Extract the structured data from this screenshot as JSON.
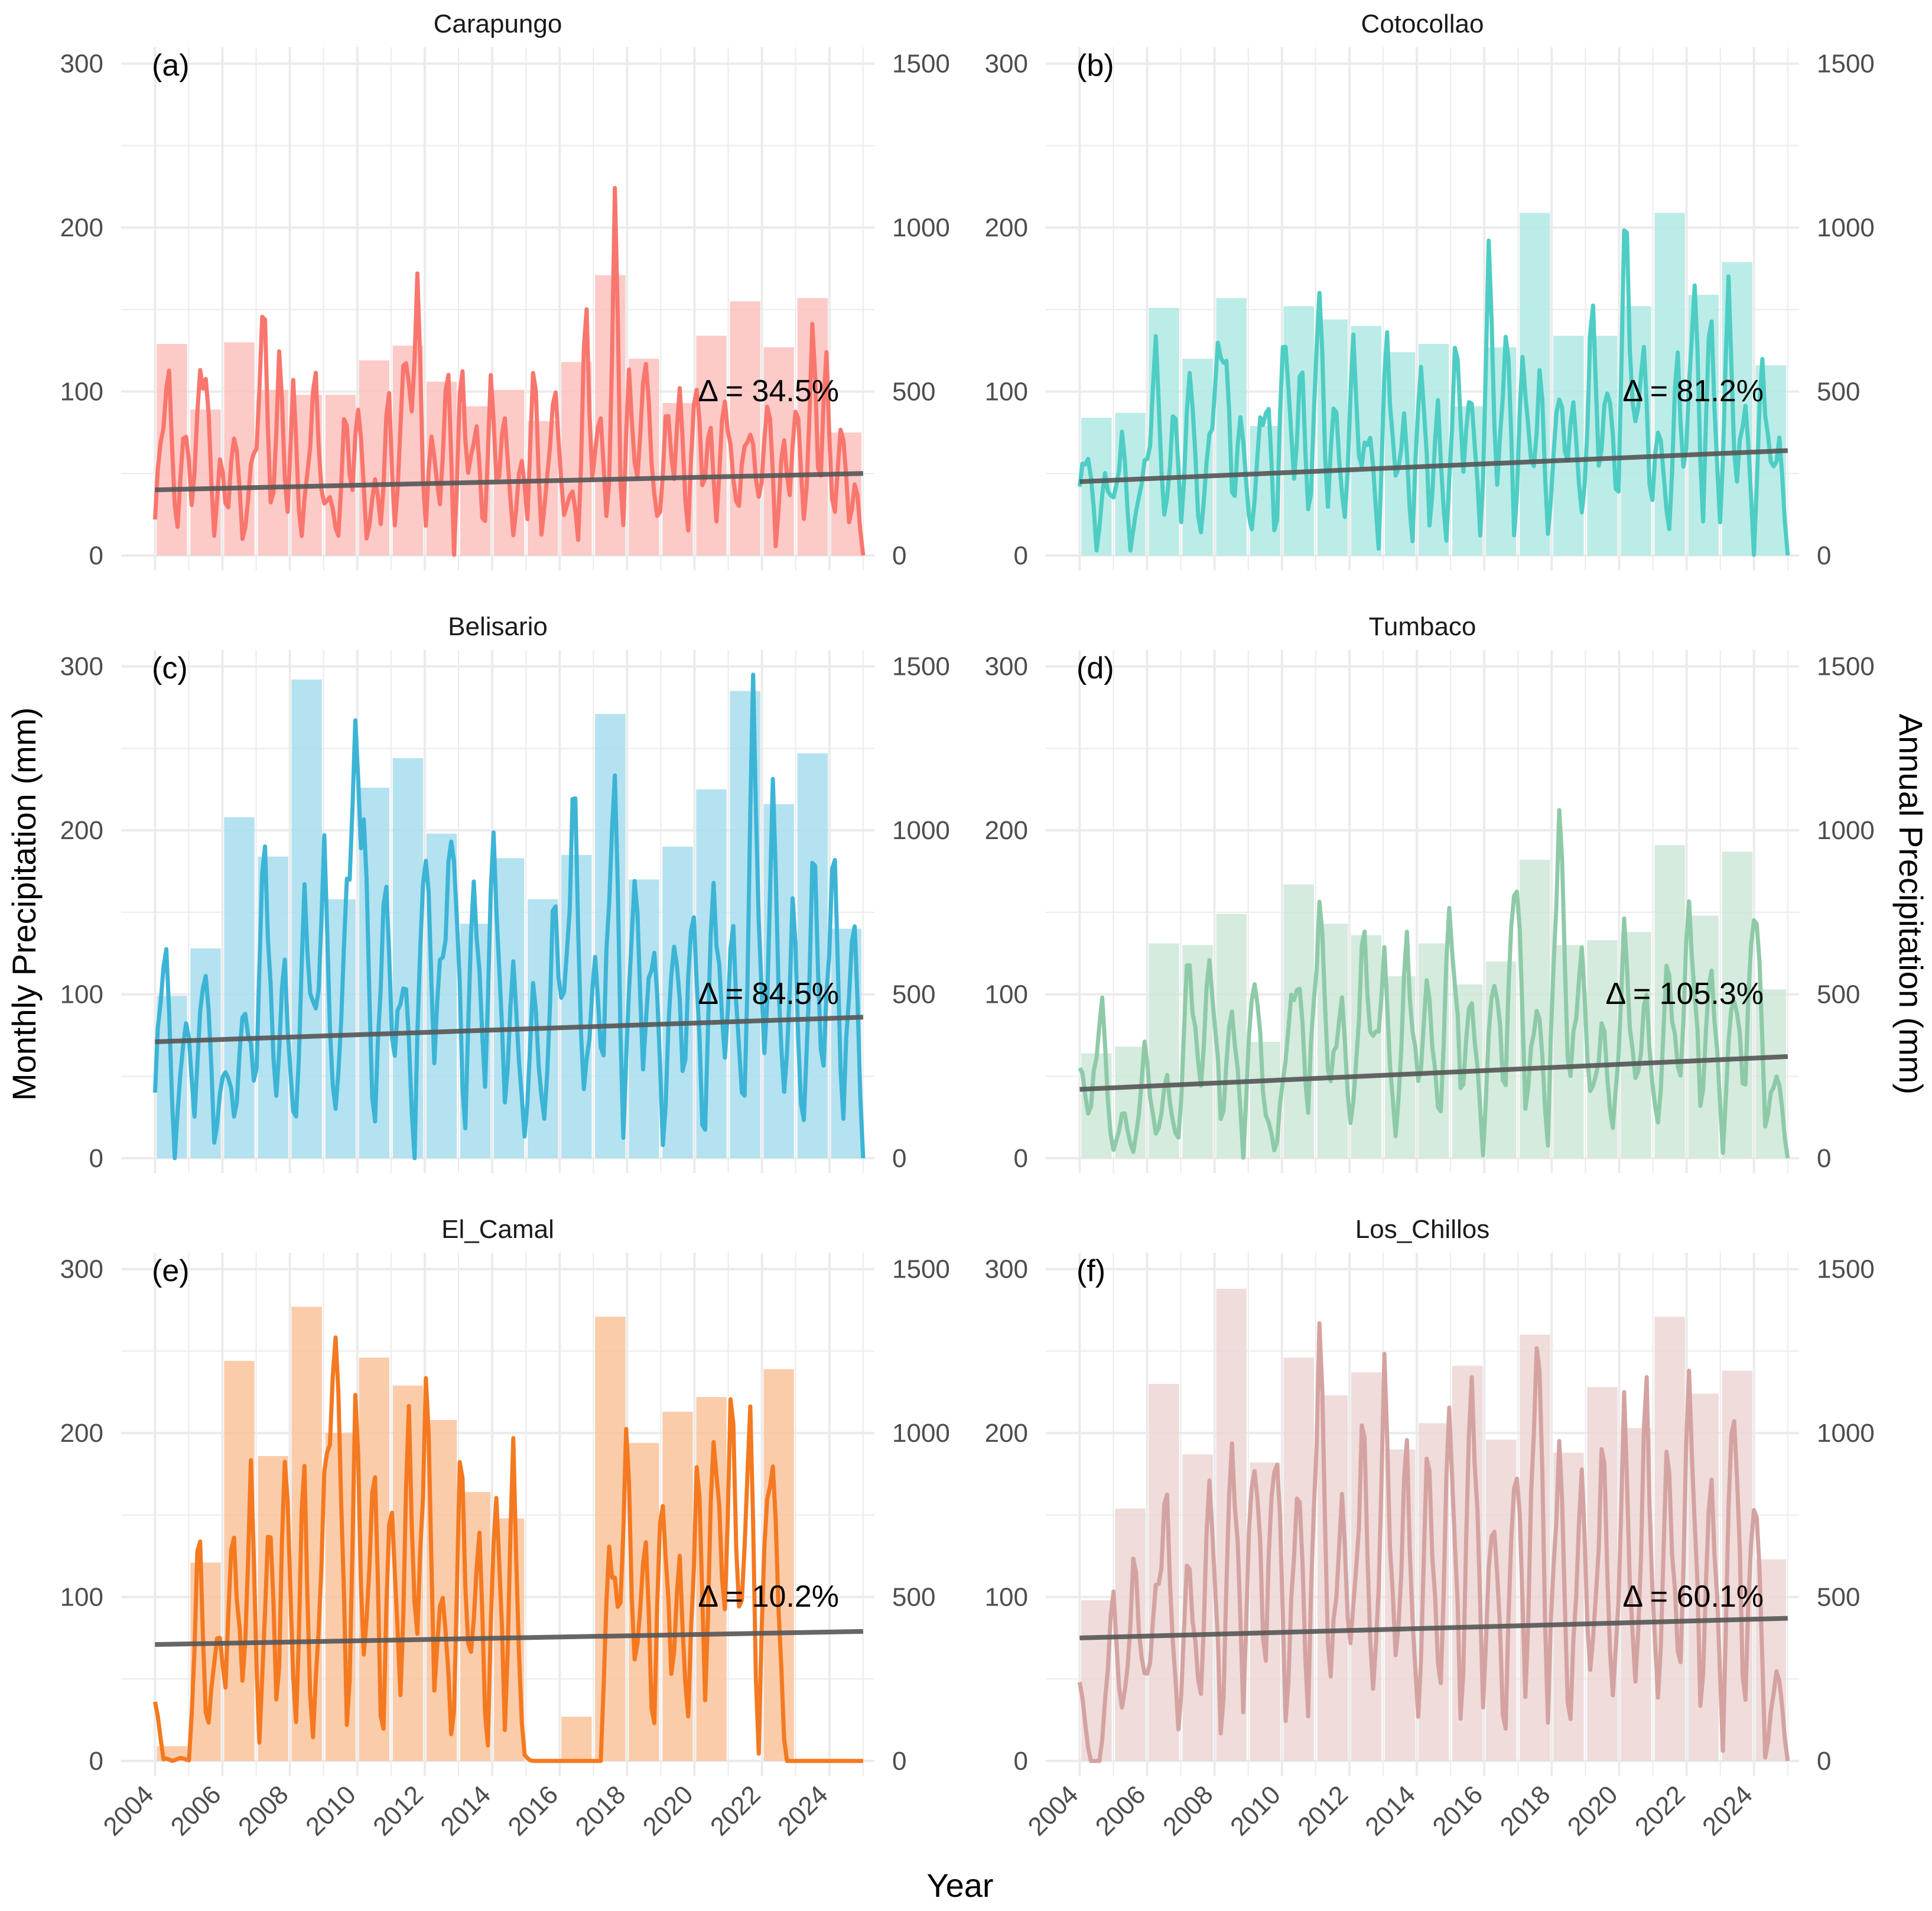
{
  "chart_data": {
    "type": "bar+line",
    "xlabel": "Year",
    "ylabel_left": "Monthly Precipitation (mm)",
    "ylabel_right": "Annual Precipitation (mm)",
    "x_range": [
      2004,
      2025
    ],
    "x_ticks": [
      "2004",
      "2006",
      "2008",
      "2010",
      "2012",
      "2014",
      "2016",
      "2018",
      "2020",
      "2022",
      "2024"
    ],
    "ylim_monthly": [
      0,
      310
    ],
    "ylim_annual": [
      0,
      1550
    ],
    "y_ticks_monthly": [
      "0",
      "100",
      "200",
      "300"
    ],
    "y_ticks_annual": [
      "0",
      "500",
      "1000",
      "1500"
    ],
    "trend_color": "#555555",
    "panels": [
      {
        "tag": "(a)",
        "station": "Carapungo",
        "color": "#F8766D",
        "delta_label": "Δ = 34.5%",
        "annual_years": [
          2004,
          2005,
          2006,
          2007,
          2008,
          2009,
          2010,
          2011,
          2012,
          2013,
          2014,
          2015,
          2016,
          2017,
          2018,
          2019,
          2020,
          2021,
          2022,
          2023,
          2024
        ],
        "annual_values": [
          645,
          445,
          650,
          505,
          490,
          490,
          595,
          640,
          530,
          455,
          505,
          410,
          590,
          855,
          600,
          465,
          670,
          775,
          635,
          785,
          375
        ],
        "trend": [
          40,
          50
        ],
        "monthly_anchors": [
          22,
          85,
          105,
          5,
          88,
          30,
          98,
          118,
          10,
          60,
          25,
          85,
          5,
          45,
          75,
          158,
          3,
          130,
          20,
          105,
          5,
          60,
          110,
          25,
          40,
          5,
          88,
          40,
          98,
          3,
          48,
          20,
          105,
          3,
          128,
          85,
          164,
          12,
          82,
          20,
          128,
          3,
          122,
          40,
          88,
          5,
          105,
          40,
          90,
          5,
          60,
          30,
          122,
          3,
          70,
          98,
          20,
          45,
          10,
          158,
          40,
          95,
          3,
          218,
          5,
          120,
          30,
          128,
          60,
          10,
          90,
          50,
          100,
          5,
          120,
          40,
          80,
          20,
          105,
          50,
          30,
          80,
          60,
          30,
          110,
          5,
          70,
          40,
          100,
          5,
          143,
          40,
          120,
          10,
          90,
          20,
          45,
          0
        ]
      },
      {
        "tag": "(b)",
        "station": "Cotocollao",
        "color": "#4ECDC4",
        "delta_label": "Δ = 81.2%",
        "annual_years": [
          2004,
          2005,
          2006,
          2007,
          2008,
          2009,
          2010,
          2011,
          2012,
          2013,
          2014,
          2015,
          2016,
          2017,
          2018,
          2019,
          2020,
          2021,
          2022,
          2023,
          2024
        ],
        "annual_values": [
          420,
          435,
          755,
          600,
          785,
          395,
          760,
          720,
          700,
          620,
          645,
          455,
          635,
          1045,
          670,
          670,
          760,
          1045,
          795,
          895,
          580
        ],
        "trend": [
          45,
          64
        ],
        "monthly_anchors": [
          42,
          65,
          5,
          50,
          30,
          75,
          3,
          40,
          60,
          128,
          10,
          95,
          20,
          125,
          5,
          60,
          110,
          135,
          30,
          90,
          5,
          70,
          100,
          3,
          155,
          40,
          120,
          8,
          176,
          30,
          100,
          10,
          130,
          50,
          80,
          5,
          140,
          40,
          85,
          10,
          125,
          20,
          90,
          3,
          130,
          60,
          100,
          5,
          190,
          30,
          150,
          10,
          130,
          40,
          115,
          5,
          105,
          60,
          90,
          10,
          160,
          50,
          115,
          20,
          220,
          60,
          135,
          30,
          85,
          5,
          125,
          40,
          180,
          20,
          160,
          5,
          165,
          40,
          100,
          3,
          120,
          50,
          70,
          0
        ]
      },
      {
        "tag": "(c)",
        "station": "Belisario",
        "color": "#3CB4D6",
        "delta_label": "Δ = 84.5%",
        "annual_years": [
          2004,
          2005,
          2006,
          2007,
          2008,
          2009,
          2010,
          2011,
          2012,
          2013,
          2014,
          2015,
          2016,
          2017,
          2018,
          2019,
          2020,
          2021,
          2022,
          2023,
          2024
        ],
        "annual_values": [
          495,
          640,
          1040,
          920,
          1460,
          790,
          1130,
          1220,
          990,
          715,
          915,
          790,
          925,
          1355,
          850,
          950,
          1125,
          1425,
          1080,
          1235,
          700
        ],
        "trend": [
          71,
          86
        ],
        "monthly_anchors": [
          40,
          142,
          0,
          90,
          30,
          128,
          10,
          60,
          25,
          98,
          40,
          200,
          30,
          120,
          5,
          160,
          70,
          185,
          10,
          130,
          245,
          200,
          5,
          175,
          60,
          120,
          3,
          205,
          70,
          140,
          200,
          10,
          180,
          40,
          205,
          30,
          120,
          5,
          110,
          10,
          160,
          80,
          235,
          30,
          120,
          60,
          250,
          10,
          180,
          60,
          140,
          5,
          145,
          50,
          160,
          0,
          175,
          60,
          140,
          10,
          290,
          40,
          225,
          20,
          160,
          0,
          195,
          40,
          200,
          20,
          160,
          0
        ]
      },
      {
        "tag": "(d)",
        "station": "Tumbaco",
        "color": "#8ECAA8",
        "delta_label": "Δ = 105.3%",
        "annual_years": [
          2004,
          2005,
          2006,
          2007,
          2008,
          2009,
          2010,
          2011,
          2012,
          2013,
          2014,
          2015,
          2016,
          2017,
          2018,
          2019,
          2020,
          2021,
          2022,
          2023,
          2024
        ],
        "annual_values": [
          320,
          340,
          655,
          650,
          745,
          355,
          835,
          715,
          680,
          555,
          655,
          530,
          600,
          910,
          650,
          665,
          690,
          955,
          740,
          935,
          515
        ],
        "trend": [
          42,
          62
        ],
        "monthly_anchors": [
          55,
          25,
          100,
          0,
          30,
          0,
          70,
          10,
          50,
          3,
          130,
          40,
          125,
          20,
          95,
          5,
          120,
          30,
          3,
          70,
          115,
          30,
          158,
          40,
          100,
          10,
          140,
          60,
          120,
          5,
          135,
          40,
          110,
          15,
          160,
          40,
          100,
          5,
          120,
          40,
          190,
          30,
          100,
          10,
          217,
          40,
          130,
          30,
          85,
          10,
          140,
          40,
          100,
          10,
          125,
          40,
          160,
          30,
          120,
          5,
          110,
          40,
          170,
          20,
          55,
          0
        ]
      },
      {
        "tag": "(e)",
        "station": "El_Camal",
        "color": "#F47920",
        "delta_label": "Δ = 10.2%",
        "annual_years": [
          2004,
          2005,
          2006,
          2007,
          2008,
          2009,
          2010,
          2011,
          2012,
          2013,
          2014,
          2015,
          2016,
          2017,
          2018,
          2019,
          2020,
          2021,
          2022,
          2023,
          2024
        ],
        "annual_values": [
          45,
          605,
          1220,
          930,
          1385,
          1000,
          1230,
          1145,
          1040,
          820,
          740,
          0,
          135,
          1355,
          970,
          1065,
          1110,
          0,
          1195,
          0,
          0
        ],
        "trend": [
          71,
          79
        ],
        "monthly_anchors": [
          36,
          2,
          0,
          2,
          0,
          148,
          10,
          80,
          50,
          145,
          40,
          175,
          0,
          160,
          30,
          205,
          0,
          190,
          0,
          120,
          220,
          240,
          0,
          230,
          40,
          200,
          0,
          180,
          30,
          210,
          60,
          240,
          50,
          110,
          0,
          200,
          40,
          150,
          0,
          180,
          20,
          190,
          5,
          0,
          0,
          0,
          0,
          0,
          0,
          0,
          0,
          0,
          140,
          80,
          200,
          40,
          150,
          10,
          180,
          50,
          120,
          20,
          190,
          40,
          220,
          80,
          228,
          60,
          230,
          0,
          180,
          150,
          0,
          0,
          0,
          0,
          0,
          0,
          0,
          0,
          0,
          0
        ]
      },
      {
        "tag": "(f)",
        "station": "Los_Chillos",
        "color": "#D4A3A1",
        "delta_label": "Δ = 60.1%",
        "annual_years": [
          2004,
          2005,
          2006,
          2007,
          2008,
          2009,
          2010,
          2011,
          2012,
          2013,
          2014,
          2015,
          2016,
          2017,
          2018,
          2019,
          2020,
          2021,
          2022,
          2023,
          2024
        ],
        "annual_values": [
          490,
          770,
          1150,
          935,
          1440,
          910,
          1230,
          1115,
          1185,
          950,
          1030,
          1205,
          980,
          1300,
          940,
          1140,
          1015,
          1355,
          1120,
          1190,
          615
        ],
        "trend": [
          75,
          87
        ],
        "monthly_anchors": [
          48,
          0,
          0,
          105,
          20,
          125,
          40,
          100,
          160,
          10,
          130,
          30,
          180,
          10,
          205,
          40,
          200,
          60,
          210,
          20,
          180,
          30,
          270,
          40,
          160,
          60,
          215,
          20,
          240,
          50,
          195,
          10,
          200,
          30,
          225,
          20,
          245,
          40,
          160,
          10,
          200,
          40,
          280,
          30,
          200,
          10,
          180,
          40,
          200,
          20,
          215,
          30,
          235,
          20,
          200,
          40,
          245,
          30,
          180,
          10,
          240,
          30,
          180,
          0,
          60,
          0
        ]
      }
    ]
  }
}
